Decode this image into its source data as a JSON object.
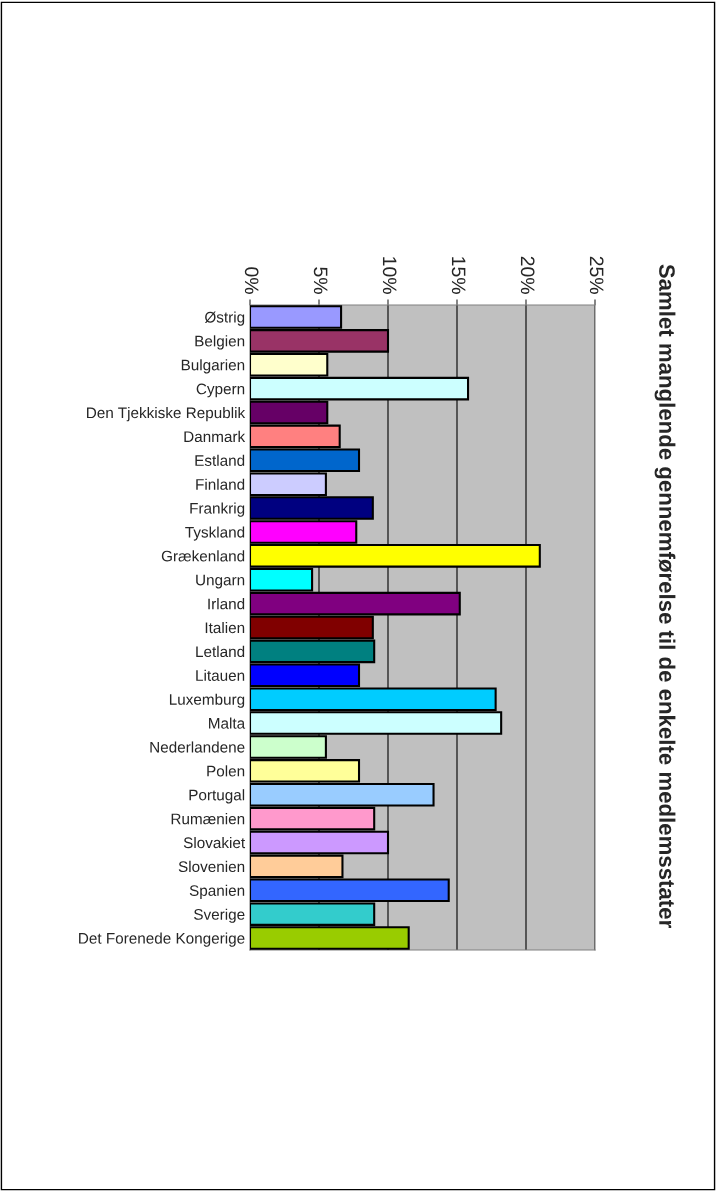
{
  "chart_data": {
    "type": "bar",
    "orientation": "horizontal",
    "title": "Samlet manglende gennemførelse til de enkelte medlemsstater",
    "categories": [
      "Østrig",
      "Belgien",
      "Bulgarien",
      "Cypern",
      "Den Tjekkiske Republik",
      "Danmark",
      "Estland",
      "Finland",
      "Frankrig",
      "Tyskland",
      "Grækenland",
      "Ungarn",
      "Irland",
      "Italien",
      "Letland",
      "Litauen",
      "Luxemburg",
      "Malta",
      "Nederlandene",
      "Polen",
      "Portugal",
      "Rumænien",
      "Slovakiet",
      "Slovenien",
      "Spanien",
      "Sverige",
      "Det Forenede Kongerige"
    ],
    "values": [
      6.6,
      10.0,
      5.6,
      15.8,
      5.6,
      6.5,
      7.9,
      5.5,
      8.9,
      7.7,
      21.0,
      4.5,
      15.2,
      8.9,
      9.0,
      7.9,
      17.8,
      18.2,
      5.5,
      7.9,
      13.3,
      9.0,
      10.0,
      6.7,
      14.4,
      9.0,
      11.5
    ],
    "colors": [
      "#9999ff",
      "#993366",
      "#ffffcc",
      "#ccffff",
      "#660066",
      "#ff8080",
      "#0066cc",
      "#ccccff",
      "#000080",
      "#ff00ff",
      "#ffff00",
      "#00ffff",
      "#800080",
      "#800000",
      "#008080",
      "#0000ff",
      "#00ccff",
      "#ccffff",
      "#ccffcc",
      "#ffff99",
      "#99ccff",
      "#ff99cc",
      "#cc99ff",
      "#ffcc99",
      "#3366ff",
      "#33cccc",
      "#99cc00"
    ],
    "xlim": [
      0,
      25
    ],
    "xticks": [
      {
        "value": 0,
        "label": "0%"
      },
      {
        "value": 5,
        "label": "5%"
      },
      {
        "value": 10,
        "label": "10%"
      },
      {
        "value": 15,
        "label": "15%"
      },
      {
        "value": 20,
        "label": "20%"
      },
      {
        "value": 25,
        "label": "25%"
      }
    ],
    "grid": "x"
  }
}
